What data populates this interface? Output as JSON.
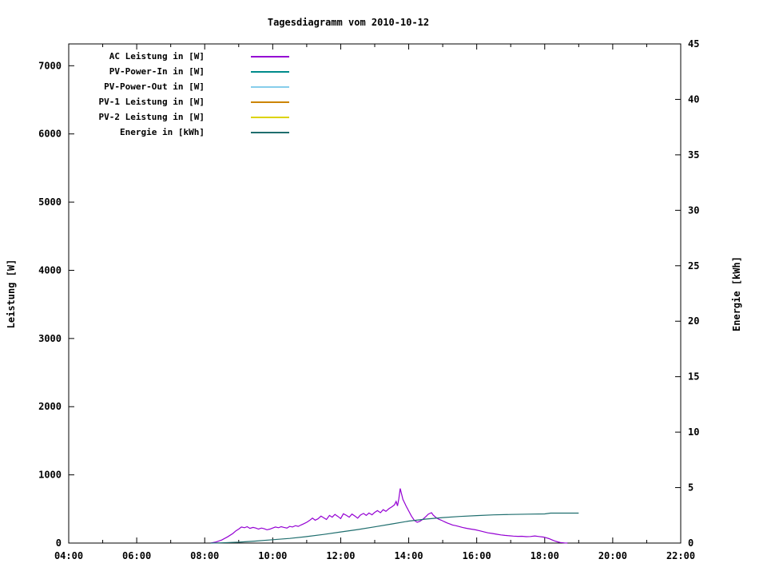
{
  "chart_data": {
    "type": "line",
    "title": "Tagesdiagramm vom 2010-10-12",
    "grid": false,
    "legend_position": "top-left-inside",
    "x": {
      "min": 4,
      "max": 22,
      "minor_step_hours": 1,
      "ticks": [
        {
          "v": 4,
          "label": "04:00"
        },
        {
          "v": 6,
          "label": "06:00"
        },
        {
          "v": 8,
          "label": "08:00"
        },
        {
          "v": 10,
          "label": "10:00"
        },
        {
          "v": 12,
          "label": "12:00"
        },
        {
          "v": 14,
          "label": "14:00"
        },
        {
          "v": 16,
          "label": "16:00"
        },
        {
          "v": 18,
          "label": "18:00"
        },
        {
          "v": 20,
          "label": "20:00"
        },
        {
          "v": 22,
          "label": "22:00"
        }
      ]
    },
    "y_left": {
      "label": "Leistung [W]",
      "min": 0,
      "max": 7320,
      "ticks": [
        0,
        1000,
        2000,
        3000,
        4000,
        5000,
        6000,
        7000
      ]
    },
    "y_right": {
      "label": "Energie [kWh]",
      "min": 0,
      "max": 45,
      "ticks": [
        0,
        5,
        10,
        15,
        20,
        25,
        30,
        35,
        40,
        45
      ]
    },
    "series": [
      {
        "name": "AC Leistung in [W]",
        "color": "#9400d3",
        "axis": "left",
        "points": [
          [
            8.17,
            0
          ],
          [
            8.33,
            15
          ],
          [
            8.5,
            45
          ],
          [
            8.67,
            90
          ],
          [
            8.83,
            140
          ],
          [
            8.92,
            180
          ],
          [
            9.0,
            205
          ],
          [
            9.08,
            235
          ],
          [
            9.17,
            225
          ],
          [
            9.25,
            240
          ],
          [
            9.33,
            215
          ],
          [
            9.42,
            230
          ],
          [
            9.5,
            220
          ],
          [
            9.58,
            205
          ],
          [
            9.67,
            220
          ],
          [
            9.75,
            210
          ],
          [
            9.83,
            195
          ],
          [
            9.92,
            205
          ],
          [
            10.0,
            220
          ],
          [
            10.08,
            235
          ],
          [
            10.17,
            225
          ],
          [
            10.25,
            240
          ],
          [
            10.33,
            230
          ],
          [
            10.42,
            220
          ],
          [
            10.5,
            245
          ],
          [
            10.58,
            235
          ],
          [
            10.67,
            255
          ],
          [
            10.75,
            245
          ],
          [
            10.83,
            265
          ],
          [
            10.92,
            285
          ],
          [
            11.0,
            305
          ],
          [
            11.08,
            330
          ],
          [
            11.17,
            365
          ],
          [
            11.25,
            335
          ],
          [
            11.33,
            355
          ],
          [
            11.42,
            395
          ],
          [
            11.5,
            370
          ],
          [
            11.58,
            345
          ],
          [
            11.67,
            405
          ],
          [
            11.75,
            380
          ],
          [
            11.83,
            420
          ],
          [
            11.92,
            390
          ],
          [
            12.0,
            360
          ],
          [
            12.08,
            430
          ],
          [
            12.17,
            405
          ],
          [
            12.25,
            380
          ],
          [
            12.33,
            425
          ],
          [
            12.42,
            395
          ],
          [
            12.5,
            365
          ],
          [
            12.58,
            410
          ],
          [
            12.67,
            435
          ],
          [
            12.75,
            405
          ],
          [
            12.83,
            440
          ],
          [
            12.92,
            415
          ],
          [
            13.0,
            450
          ],
          [
            13.08,
            475
          ],
          [
            13.17,
            445
          ],
          [
            13.25,
            490
          ],
          [
            13.33,
            465
          ],
          [
            13.42,
            505
          ],
          [
            13.5,
            530
          ],
          [
            13.58,
            560
          ],
          [
            13.63,
            610
          ],
          [
            13.67,
            545
          ],
          [
            13.71,
            650
          ],
          [
            13.75,
            800
          ],
          [
            13.79,
            720
          ],
          [
            13.83,
            640
          ],
          [
            13.88,
            590
          ],
          [
            13.92,
            545
          ],
          [
            14.0,
            470
          ],
          [
            14.08,
            395
          ],
          [
            14.17,
            330
          ],
          [
            14.25,
            305
          ],
          [
            14.33,
            320
          ],
          [
            14.42,
            350
          ],
          [
            14.5,
            385
          ],
          [
            14.58,
            425
          ],
          [
            14.67,
            445
          ],
          [
            14.72,
            410
          ],
          [
            14.79,
            380
          ],
          [
            14.88,
            350
          ],
          [
            14.96,
            335
          ],
          [
            15.04,
            315
          ],
          [
            15.13,
            295
          ],
          [
            15.21,
            280
          ],
          [
            15.29,
            265
          ],
          [
            15.38,
            255
          ],
          [
            15.46,
            245
          ],
          [
            15.58,
            230
          ],
          [
            15.71,
            215
          ],
          [
            15.83,
            205
          ],
          [
            15.96,
            195
          ],
          [
            16.08,
            180
          ],
          [
            16.21,
            165
          ],
          [
            16.33,
            150
          ],
          [
            16.46,
            140
          ],
          [
            16.58,
            130
          ],
          [
            16.71,
            120
          ],
          [
            16.83,
            112
          ],
          [
            16.96,
            106
          ],
          [
            17.08,
            102
          ],
          [
            17.21,
            98
          ],
          [
            17.33,
            100
          ],
          [
            17.46,
            94
          ],
          [
            17.58,
            96
          ],
          [
            17.71,
            104
          ],
          [
            17.83,
            96
          ],
          [
            17.96,
            88
          ],
          [
            18.04,
            78
          ],
          [
            18.13,
            64
          ],
          [
            18.21,
            48
          ],
          [
            18.29,
            32
          ],
          [
            18.38,
            18
          ],
          [
            18.46,
            8
          ],
          [
            18.58,
            2
          ],
          [
            18.67,
            0
          ]
        ]
      },
      {
        "name": "PV-Power-In in [W]",
        "color": "#008b8b",
        "axis": "left",
        "points": []
      },
      {
        "name": "PV-Power-Out in [W]",
        "color": "#87ceeb",
        "axis": "left",
        "points": []
      },
      {
        "name": "PV-1 Leistung in [W]",
        "color": "#cc8400",
        "axis": "left",
        "points": []
      },
      {
        "name": "PV-2 Leistung in [W]",
        "color": "#dcd300",
        "axis": "left",
        "points": []
      },
      {
        "name": "Energie in [kWh]",
        "color": "#1f6e6e",
        "axis": "right",
        "points": [
          [
            8.17,
            0
          ],
          [
            8.5,
            0.02
          ],
          [
            9.0,
            0.08
          ],
          [
            9.5,
            0.18
          ],
          [
            10.0,
            0.3
          ],
          [
            10.5,
            0.42
          ],
          [
            11.0,
            0.58
          ],
          [
            11.5,
            0.78
          ],
          [
            12.0,
            1.0
          ],
          [
            12.5,
            1.22
          ],
          [
            13.0,
            1.46
          ],
          [
            13.5,
            1.72
          ],
          [
            14.0,
            1.98
          ],
          [
            14.5,
            2.16
          ],
          [
            15.0,
            2.3
          ],
          [
            15.5,
            2.4
          ],
          [
            16.0,
            2.48
          ],
          [
            16.5,
            2.54
          ],
          [
            17.0,
            2.58
          ],
          [
            17.5,
            2.61
          ],
          [
            18.0,
            2.63
          ],
          [
            18.17,
            2.7
          ],
          [
            18.6,
            2.7
          ],
          [
            19.0,
            2.7
          ]
        ]
      }
    ]
  }
}
